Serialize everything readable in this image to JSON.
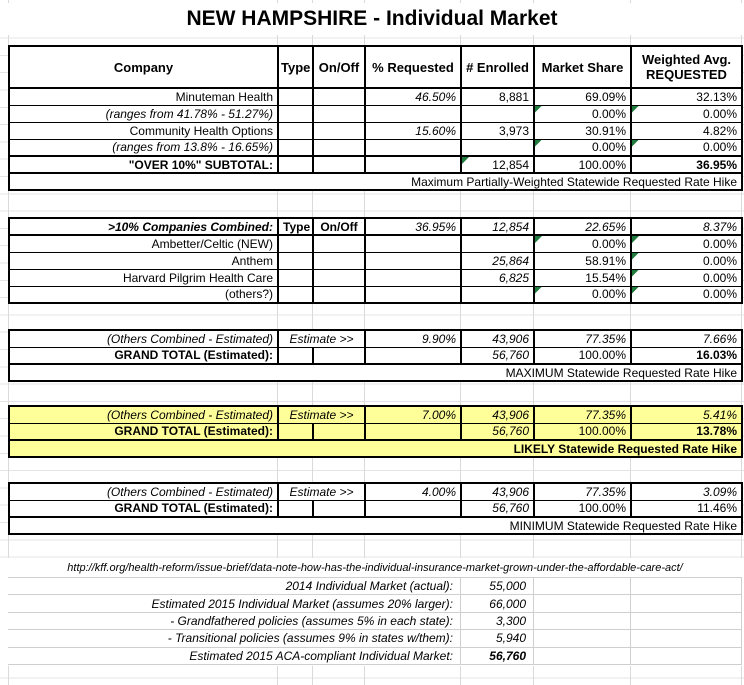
{
  "title": "NEW HAMPSHIRE - Individual Market",
  "colors": {
    "highlight": "#FFFF99",
    "triangle": "#1F7B3C",
    "grid_line": "#DADADA",
    "table_border": "#000000"
  },
  "table1": {
    "header": {
      "company": "Company",
      "type": "Type",
      "onoff": "On/Off",
      "requested": "% Requested",
      "enrolled": "# Enrolled",
      "share": "Market Share",
      "weighted1": "Weighted Avg.",
      "weighted2": "REQUESTED"
    },
    "rows": [
      {
        "cells": [
          {
            "v": "Minuteman Health"
          },
          {},
          {},
          {
            "v": "46.50%",
            "i": 1
          },
          {
            "v": "8,881"
          },
          {
            "v": "69.09%"
          },
          {
            "v": "32.13%"
          }
        ]
      },
      {
        "cells": [
          {
            "v": "(ranges from 41.78% - 51.27%)",
            "i": 1
          },
          {},
          {},
          {},
          {},
          {
            "v": "0.00%",
            "tri": 1
          },
          {
            "v": "0.00%",
            "tri": 1
          }
        ]
      },
      {
        "cells": [
          {
            "v": "Community Health Options"
          },
          {},
          {},
          {
            "v": "15.60%",
            "i": 1
          },
          {
            "v": "3,973"
          },
          {
            "v": "30.91%"
          },
          {
            "v": "4.82%"
          }
        ]
      },
      {
        "cells": [
          {
            "v": "(ranges from 13.8% - 16.65%)",
            "i": 1
          },
          {},
          {},
          {},
          {},
          {
            "v": "0.00%",
            "tri": 1
          },
          {
            "v": "0.00%",
            "tri": 1
          }
        ]
      },
      {
        "cls": "thick",
        "cells": [
          {
            "v": "\"OVER 10%\" SUBTOTAL:",
            "b": 1
          },
          {},
          {},
          {},
          {
            "v": "12,854",
            "tri": 1
          },
          {
            "v": "100.00%"
          },
          {
            "v": "36.95%",
            "b": 1
          }
        ]
      }
    ],
    "note": "Maximum Partially-Weighted Statewide Requested Rate Hike"
  },
  "table2": {
    "rows": [
      {
        "cells": [
          {
            "v": ">10% Companies Combined:",
            "b": 1,
            "i": 1
          },
          {
            "v": "Type",
            "b": 1,
            "c": 1
          },
          {
            "v": "On/Off",
            "b": 1,
            "c": 1
          },
          {
            "v": "36.95%",
            "i": 1
          },
          {
            "v": "12,854",
            "i": 1
          },
          {
            "v": "22.65%",
            "i": 1
          },
          {
            "v": "8.37%",
            "i": 1
          }
        ]
      },
      {
        "cls": "thick",
        "cells": [
          {
            "v": "Ambetter/Celtic (NEW)"
          },
          {},
          {},
          {},
          {},
          {
            "v": "0.00%",
            "tri": 1
          },
          {
            "v": "0.00%",
            "tri": 1
          }
        ]
      },
      {
        "cells": [
          {
            "v": "Anthem"
          },
          {},
          {},
          {},
          {
            "v": "25,864",
            "i": 1
          },
          {
            "v": "58.91%"
          },
          {
            "v": "0.00%",
            "tri": 1
          }
        ]
      },
      {
        "cells": [
          {
            "v": "Harvard Pilgrim Health Care"
          },
          {},
          {},
          {},
          {
            "v": "6,825",
            "i": 1
          },
          {
            "v": "15.54%"
          },
          {
            "v": "0.00%",
            "tri": 1
          }
        ]
      },
      {
        "cells": [
          {
            "v": "(others?)"
          },
          {},
          {},
          {},
          {},
          {
            "v": "0.00%",
            "tri": 1
          },
          {
            "v": "0.00%",
            "tri": 1
          }
        ]
      }
    ]
  },
  "sections": [
    {
      "name": "maximum",
      "rows": [
        {
          "cells": [
            {
              "v": "(Others Combined - Estimated)",
              "i": 1
            },
            {
              "v": "Estimate >>",
              "i": 1,
              "c": 1,
              "s": 2
            },
            {
              "v": "9.90%",
              "i": 1
            },
            {
              "v": "43,906",
              "i": 1
            },
            {
              "v": "77.35%",
              "i": 1
            },
            {
              "v": "7.66%",
              "i": 1
            }
          ]
        },
        {
          "cells": [
            {
              "v": "GRAND TOTAL (Estimated):",
              "b": 1
            },
            {},
            {},
            {},
            {
              "v": "56,760",
              "i": 1
            },
            {
              "v": "100.00%"
            },
            {
              "v": "16.03%",
              "b": 1
            }
          ]
        }
      ],
      "note": "MAXIMUM Statewide Requested Rate Hike"
    },
    {
      "name": "likely",
      "rows": [
        {
          "cells": [
            {
              "v": "(Others Combined - Estimated)",
              "i": 1
            },
            {
              "v": "Estimate >>",
              "i": 1,
              "c": 1,
              "s": 2
            },
            {
              "v": "7.00%",
              "i": 1
            },
            {
              "v": "43,906",
              "i": 1
            },
            {
              "v": "77.35%",
              "i": 1
            },
            {
              "v": "5.41%",
              "i": 1
            }
          ]
        },
        {
          "cells": [
            {
              "v": "GRAND TOTAL (Estimated):",
              "b": 1
            },
            {},
            {},
            {},
            {
              "v": "56,760",
              "i": 1
            },
            {
              "v": "100.00%"
            },
            {
              "v": "13.78%",
              "b": 1
            }
          ]
        }
      ],
      "note": "LIKELY Statewide Requested Rate Hike"
    },
    {
      "name": "minimum",
      "rows": [
        {
          "cells": [
            {
              "v": "(Others Combined - Estimated)",
              "i": 1
            },
            {
              "v": "Estimate >>",
              "i": 1,
              "c": 1,
              "s": 2
            },
            {
              "v": "4.00%",
              "i": 1
            },
            {
              "v": "43,906",
              "i": 1
            },
            {
              "v": "77.35%",
              "i": 1
            },
            {
              "v": "3.09%",
              "i": 1
            }
          ]
        },
        {
          "cells": [
            {
              "v": "GRAND TOTAL (Estimated):",
              "b": 1
            },
            {},
            {},
            {},
            {
              "v": "56,760",
              "i": 1
            },
            {
              "v": "100.00%"
            },
            {
              "v": "11.46%"
            }
          ]
        }
      ],
      "note": "MINIMUM Statewide Requested Rate Hike"
    }
  ],
  "footer": {
    "url": "http://kff.org/health-reform/issue-brief/data-note-how-has-the-individual-insurance-market-grown-under-the-affordable-care-act/",
    "rows": [
      {
        "label": "2014 Individual Market (actual):",
        "value": "55,000"
      },
      {
        "label": "Estimated 2015 Individual Market (assumes 20% larger):",
        "value": "66,000"
      },
      {
        "label": "- Grandfathered policies (assumes 5% in each state):",
        "value": "3,300"
      },
      {
        "label": "- Transitional policies (assumes 9%  in states w/them):",
        "value": "5,940"
      },
      {
        "label": "Estimated 2015 ACA-compliant Individual Market:",
        "value": "56,760"
      }
    ]
  }
}
